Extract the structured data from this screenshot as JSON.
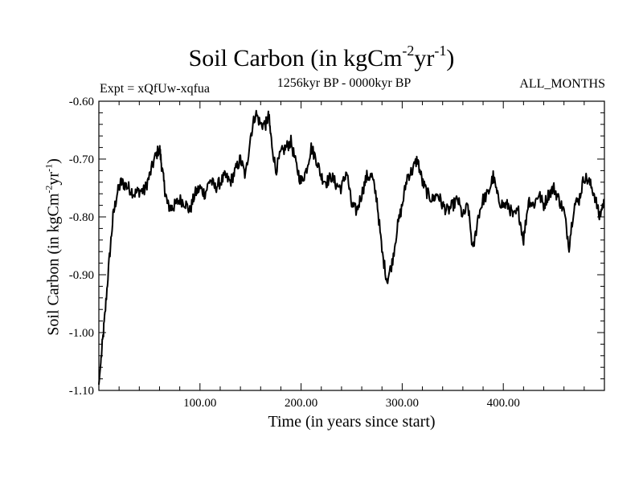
{
  "chart_data": {
    "type": "line",
    "title": "Soil Carbon (in kgCm",
    "title_sup1": "-2",
    "title_mid": "yr",
    "title_sup2": "-1",
    "title_end": ")",
    "subtitle": "1256kyr BP - 0000kyr BP",
    "experiment": "Expt = xQfUw-xqfua",
    "months": "ALL_MONTHS",
    "xlabel": "Time (in years since start)",
    "ylabel_main": "Soil Carbon (in kgCm",
    "ylabel_sup1": "-2",
    "ylabel_mid": "yr",
    "ylabel_sup2": "-1",
    "ylabel_end": ")",
    "xlim": [
      0,
      500
    ],
    "ylim": [
      -1.1,
      -0.6
    ],
    "x_ticks": [
      100,
      200,
      300,
      400
    ],
    "x_tick_labels": [
      "100.00",
      "200.00",
      "300.00",
      "400.00"
    ],
    "y_ticks": [
      -1.1,
      -1.0,
      -0.9,
      -0.8,
      -0.7,
      -0.6
    ],
    "y_tick_labels": [
      "-1.10",
      "-1.00",
      "-0.90",
      "-0.80",
      "-0.70",
      "-0.60"
    ],
    "series": [
      {
        "name": "Soil Carbon",
        "x": [
          0,
          3,
          6,
          10,
          14,
          18,
          22,
          26,
          30,
          35,
          40,
          45,
          50,
          55,
          60,
          62,
          65,
          68,
          72,
          75,
          80,
          85,
          90,
          95,
          100,
          105,
          110,
          115,
          120,
          125,
          130,
          135,
          140,
          145,
          150,
          155,
          160,
          165,
          168,
          170,
          175,
          180,
          185,
          190,
          195,
          200,
          205,
          210,
          215,
          220,
          225,
          230,
          235,
          240,
          245,
          250,
          255,
          260,
          265,
          270,
          275,
          280,
          285,
          290,
          295,
          300,
          305,
          310,
          315,
          320,
          325,
          330,
          335,
          340,
          345,
          350,
          355,
          360,
          365,
          370,
          375,
          380,
          385,
          390,
          395,
          400,
          405,
          410,
          415,
          420,
          425,
          430,
          435,
          440,
          445,
          450,
          455,
          460,
          465,
          470,
          475,
          480,
          485,
          490,
          495,
          500
        ],
        "y": [
          -1.09,
          -1.03,
          -0.97,
          -0.88,
          -0.8,
          -0.76,
          -0.74,
          -0.745,
          -0.75,
          -0.76,
          -0.755,
          -0.755,
          -0.73,
          -0.7,
          -0.68,
          -0.71,
          -0.75,
          -0.78,
          -0.785,
          -0.78,
          -0.77,
          -0.775,
          -0.79,
          -0.76,
          -0.75,
          -0.76,
          -0.735,
          -0.75,
          -0.74,
          -0.73,
          -0.74,
          -0.72,
          -0.7,
          -0.73,
          -0.66,
          -0.62,
          -0.64,
          -0.64,
          -0.625,
          -0.66,
          -0.72,
          -0.69,
          -0.68,
          -0.67,
          -0.71,
          -0.74,
          -0.72,
          -0.68,
          -0.7,
          -0.73,
          -0.74,
          -0.73,
          -0.745,
          -0.75,
          -0.72,
          -0.78,
          -0.79,
          -0.76,
          -0.73,
          -0.73,
          -0.77,
          -0.86,
          -0.91,
          -0.88,
          -0.82,
          -0.78,
          -0.73,
          -0.72,
          -0.7,
          -0.74,
          -0.76,
          -0.77,
          -0.76,
          -0.78,
          -0.79,
          -0.78,
          -0.77,
          -0.8,
          -0.78,
          -0.86,
          -0.8,
          -0.77,
          -0.76,
          -0.73,
          -0.77,
          -0.78,
          -0.78,
          -0.8,
          -0.79,
          -0.84,
          -0.77,
          -0.78,
          -0.76,
          -0.78,
          -0.76,
          -0.75,
          -0.77,
          -0.79,
          -0.85,
          -0.78,
          -0.77,
          -0.73,
          -0.74,
          -0.76,
          -0.8,
          -0.77
        ]
      }
    ]
  }
}
